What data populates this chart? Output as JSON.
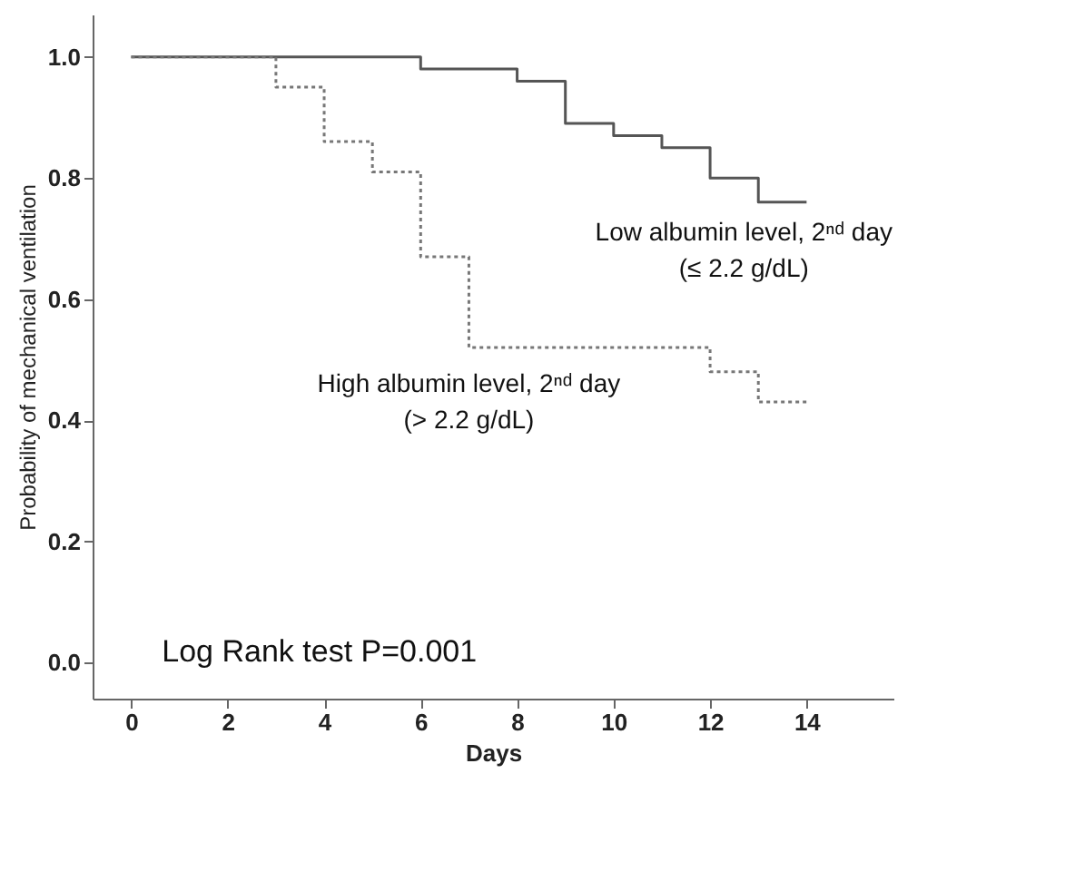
{
  "chart_data": {
    "type": "step",
    "xlabel": "Days",
    "ylabel": "Probability of mechanical ventilation",
    "xlim": [
      -0.8,
      15.8
    ],
    "ylim": [
      -0.06,
      1.07
    ],
    "xticks": [
      0,
      2,
      4,
      6,
      8,
      10,
      12,
      14
    ],
    "yticks": [
      {
        "value": 0,
        "label": "0.0"
      },
      0.2,
      0.4,
      0.6,
      0.8,
      {
        "value": 1,
        "label": "1.0"
      }
    ],
    "grid": false,
    "series": [
      {
        "color": "#555555",
        "line_style": "solid",
        "x": [
          0,
          6,
          8,
          9,
          10,
          11,
          12,
          13,
          14
        ],
        "values": [
          1,
          0.98,
          0.96,
          0.89,
          0.87,
          0.85,
          0.8,
          0.76,
          0.76
        ]
      },
      {
        "color": "#777777",
        "line_style": "dotted",
        "x": [
          0,
          3,
          4,
          5,
          6,
          7,
          12,
          13,
          14
        ],
        "values": [
          1,
          0.95,
          0.86,
          0.81,
          0.67,
          0.52,
          0.48,
          0.43,
          0.43
        ]
      }
    ],
    "annotations": [
      "Low albumin level, 2ⁿᵈ day\n(≤ 2.2 g/dL)",
      "High albumin level, 2ⁿᵈ day\n(> 2.2 g/dL)",
      "Log Rank test P=0.001"
    ]
  }
}
